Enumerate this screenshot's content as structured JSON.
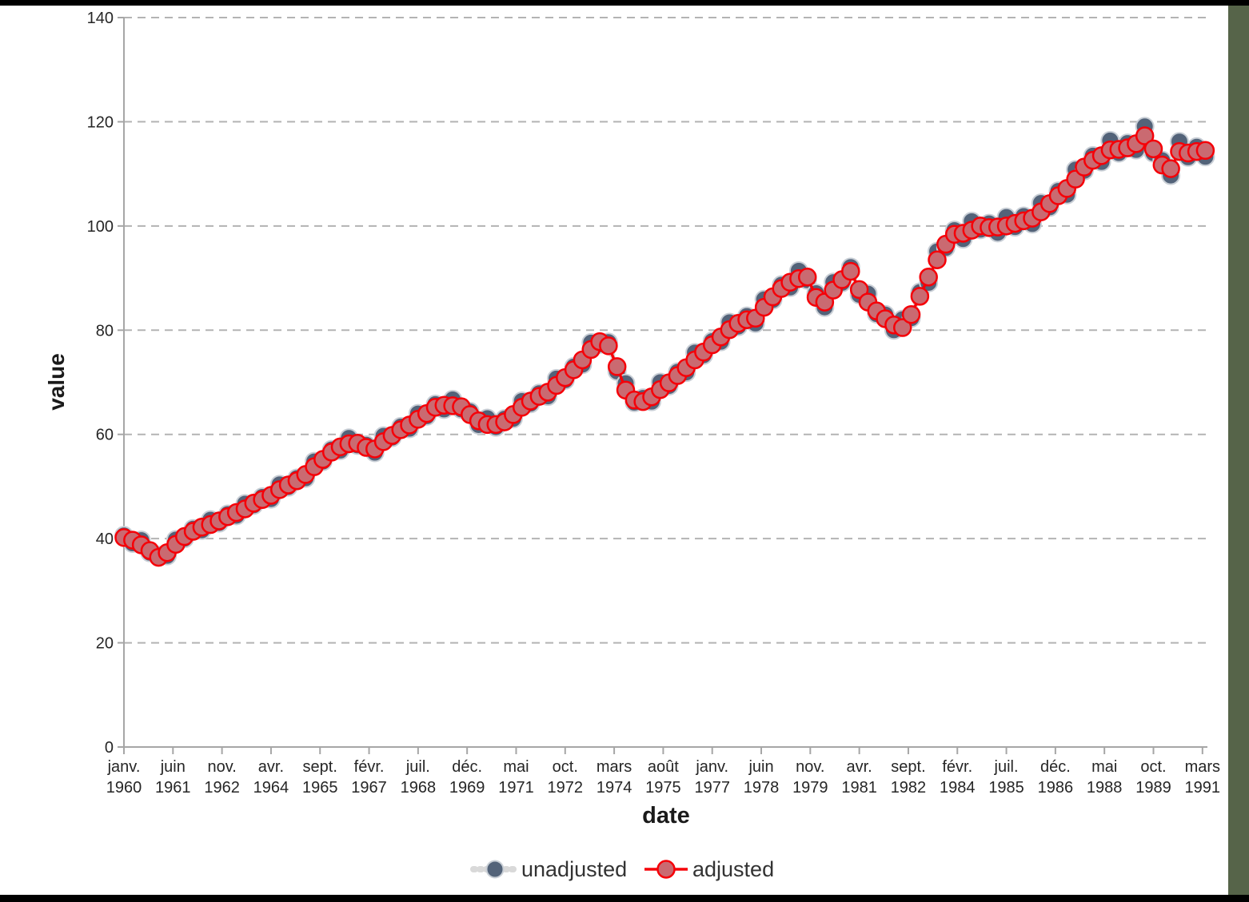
{
  "frame": {
    "top_bar_color": "#000000",
    "bottom_bar_color": "#000000",
    "right_bar_color": "#566449",
    "background_color": "#ffffff"
  },
  "style": {
    "grid_color": "#b3b3b3",
    "axis_color": "#a6a6a6",
    "tick_label_color": "#262626",
    "title_color": "#1a1a1a",
    "legend_text_color": "#333333"
  },
  "chart_data": {
    "type": "line",
    "title": "",
    "xlabel": "date",
    "ylabel": "value",
    "frequency": "quarterly",
    "start": "1960-01",
    "step_months": 3,
    "ylim": [
      0,
      140
    ],
    "yticks": [
      0,
      20,
      40,
      60,
      80,
      100,
      120,
      140
    ],
    "grid": "horizontal-dashed",
    "legend_position": "bottom-center",
    "xticks": [
      {
        "month": "janv.",
        "year": "1960",
        "month_offset": 0
      },
      {
        "month": "juin",
        "year": "1961",
        "month_offset": 17
      },
      {
        "month": "nov.",
        "year": "1962",
        "month_offset": 34
      },
      {
        "month": "avr.",
        "year": "1964",
        "month_offset": 51
      },
      {
        "month": "sept.",
        "year": "1965",
        "month_offset": 68
      },
      {
        "month": "févr.",
        "year": "1967",
        "month_offset": 85
      },
      {
        "month": "juil.",
        "year": "1968",
        "month_offset": 102
      },
      {
        "month": "déc.",
        "year": "1969",
        "month_offset": 119
      },
      {
        "month": "mai",
        "year": "1971",
        "month_offset": 136
      },
      {
        "month": "oct.",
        "year": "1972",
        "month_offset": 153
      },
      {
        "month": "mars",
        "year": "1974",
        "month_offset": 170
      },
      {
        "month": "août",
        "year": "1975",
        "month_offset": 187
      },
      {
        "month": "janv.",
        "year": "1977",
        "month_offset": 204
      },
      {
        "month": "juin",
        "year": "1978",
        "month_offset": 221
      },
      {
        "month": "nov.",
        "year": "1979",
        "month_offset": 238
      },
      {
        "month": "avr.",
        "year": "1981",
        "month_offset": 255
      },
      {
        "month": "sept.",
        "year": "1982",
        "month_offset": 272
      },
      {
        "month": "févr.",
        "year": "1984",
        "month_offset": 289
      },
      {
        "month": "juil.",
        "year": "1985",
        "month_offset": 306
      },
      {
        "month": "déc.",
        "year": "1986",
        "month_offset": 323
      },
      {
        "month": "mai",
        "year": "1988",
        "month_offset": 340
      },
      {
        "month": "oct.",
        "year": "1989",
        "month_offset": 357
      },
      {
        "month": "mars",
        "year": "1991",
        "month_offset": 374
      }
    ],
    "series": [
      {
        "name": "unadjusted",
        "marker_fill": "#536379",
        "marker_stroke": "#c9cfd6",
        "line_color": "#d9d9d9",
        "values": [
          40.6,
          39.1,
          39.7,
          37.3,
          36.8,
          36.7,
          39.8,
          40.0,
          41.9,
          41.6,
          43.6,
          43.0,
          44.7,
          44.4,
          46.7,
          46.4,
          48.0,
          47.6,
          50.4,
          49.9,
          51.6,
          51.6,
          54.8,
          54.8,
          57.1,
          56.9,
          59.3,
          57.9,
          58.0,
          56.5,
          59.7,
          59.4,
          61.5,
          61.1,
          64.0,
          63.5,
          65.8,
          64.8,
          66.7,
          64.8,
          64.4,
          61.8,
          63.1,
          61.4,
          63.0,
          63.0,
          66.4,
          65.9,
          67.9,
          67.3,
          70.7,
          70.4,
          73.0,
          73.4,
          77.6,
          77.3,
          77.7,
          72.1,
          69.8,
          66.1,
          67.0,
          66.3,
          70.0,
          69.3,
          72.0,
          71.9,
          75.7,
          75.2,
          77.9,
          77.8,
          81.5,
          80.7,
          82.7,
          81.3,
          85.9,
          85.8,
          88.7,
          88.2,
          91.4,
          89.6,
          87.1,
          84.4,
          89.2,
          89.1,
          92.1,
          86.8,
          87.0,
          83.1,
          83.0,
          80.0,
          82.1,
          82.3,
          87.3,
          89.1,
          95.1,
          95.8,
          99.2,
          97.5,
          100.9,
          99.3,
          100.5,
          98.7,
          101.7,
          99.8,
          101.9,
          100.4,
          104.4,
          103.6,
          106.7,
          106.0,
          110.8,
          110.6,
          113.5,
          112.3,
          116.4,
          114.0,
          115.9,
          114.6,
          119.1,
          114.0,
          112.6,
          109.7,
          116.2,
          113.2,
          115.2,
          113.3
        ]
      },
      {
        "name": "adjusted",
        "marker_fill": "#ca6a71",
        "marker_stroke": "#f50008",
        "line_color": "#f50008",
        "values": [
          40.2,
          39.7,
          38.8,
          37.7,
          36.4,
          37.3,
          38.9,
          40.4,
          41.4,
          42.2,
          42.7,
          43.4,
          44.2,
          45.0,
          45.7,
          46.8,
          47.5,
          48.3,
          49.4,
          50.3,
          51.1,
          52.3,
          53.8,
          55.2,
          56.6,
          57.6,
          58.2,
          58.3,
          57.5,
          57.2,
          58.6,
          59.8,
          60.9,
          61.8,
          62.9,
          64.0,
          65.2,
          65.6,
          65.5,
          65.3,
          63.8,
          62.6,
          61.9,
          61.9,
          62.4,
          63.8,
          65.2,
          66.4,
          67.3,
          68.1,
          69.4,
          70.9,
          72.4,
          74.3,
          76.3,
          77.8,
          77.0,
          73.0,
          68.5,
          66.6,
          66.3,
          67.2,
          68.6,
          69.9,
          71.3,
          72.8,
          74.3,
          75.8,
          77.2,
          78.7,
          80.1,
          81.3,
          82.0,
          82.3,
          84.4,
          86.4,
          88.0,
          89.2,
          89.9,
          90.2,
          86.3,
          85.4,
          87.7,
          89.7,
          91.3,
          87.8,
          85.4,
          83.7,
          82.2,
          81.0,
          80.5,
          83.0,
          86.5,
          90.2,
          93.5,
          96.5,
          98.4,
          98.6,
          99.2,
          100.0,
          99.7,
          99.8,
          100.0,
          100.5,
          101.0,
          101.5,
          102.7,
          104.3,
          105.8,
          107.2,
          109.0,
          111.3,
          112.6,
          113.5,
          114.6,
          114.7,
          115.0,
          115.8,
          117.3,
          114.8,
          111.7,
          111.0,
          114.3,
          114.0,
          114.3,
          114.5
        ]
      }
    ]
  }
}
